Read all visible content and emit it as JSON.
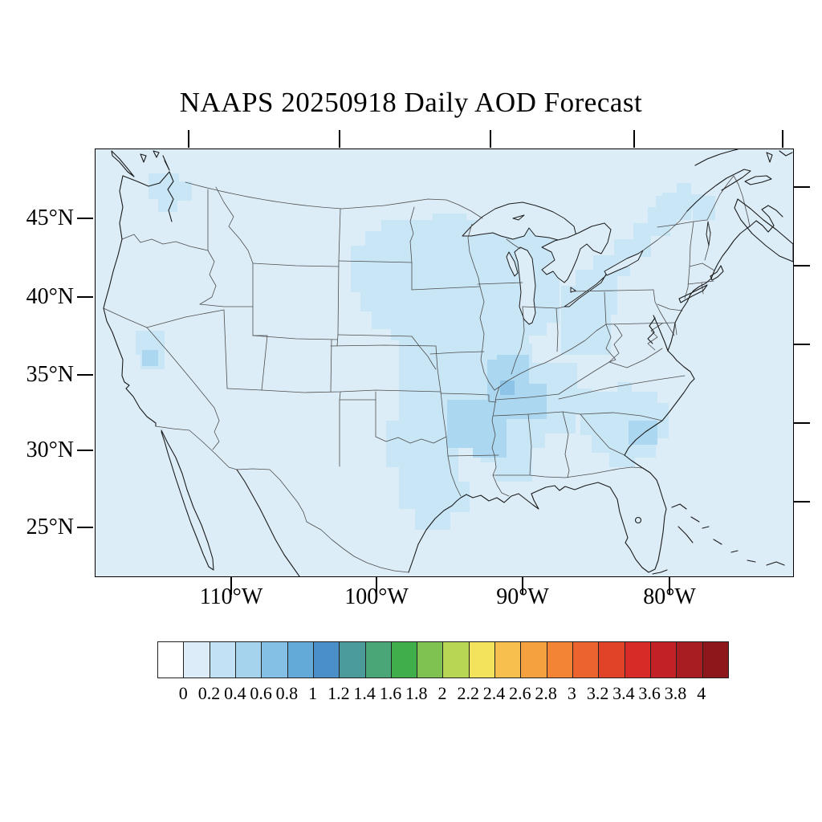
{
  "title": "NAAPS 20250918 Daily AOD Forecast",
  "map": {
    "lat_labels": [
      "45°N",
      "40°N",
      "35°N",
      "30°N",
      "25°N"
    ],
    "lon_labels": [
      "110°W",
      "100°W",
      "90°W",
      "80°W"
    ],
    "base_color": "#dcedf8",
    "aod_shade_colors": {
      "0-0.2": "#dcedf8",
      "0.2-0.4": "#c9e6f6",
      "0.4-0.6": "#abd7f0",
      "0.6-0.8": "#8cc3e6"
    },
    "coast_color": "#1b1b1b",
    "state_border_color": "#4d4d4d"
  },
  "colorbar": {
    "labels": [
      "0",
      "0.2",
      "0.4",
      "0.6",
      "0.8",
      "1",
      "1.2",
      "1.4",
      "1.6",
      "1.8",
      "2",
      "2.2",
      "2.4",
      "2.6",
      "2.8",
      "3",
      "3.2",
      "3.4",
      "3.6",
      "3.8",
      "4"
    ],
    "colors": [
      "#ffffff",
      "#dcecf9",
      "#c3e1f4",
      "#a5d3ee",
      "#84c0e5",
      "#64aad9",
      "#4a8fc7",
      "#4b9b9b",
      "#4aa577",
      "#40ae4b",
      "#7fc251",
      "#b8d553",
      "#f3e35c",
      "#f7c04e",
      "#f5a140",
      "#f28433",
      "#ec632d",
      "#e14328",
      "#d62b27",
      "#c22126",
      "#a81d22",
      "#8c181c"
    ]
  },
  "chart_data": {
    "type": "heatmap",
    "title": "NAAPS 20250918 Daily AOD Forecast",
    "variable": "Aerosol Optical Depth (AOD)",
    "scale_ticks": [
      0,
      0.2,
      0.4,
      0.6,
      0.8,
      1,
      1.2,
      1.4,
      1.6,
      1.8,
      2,
      2.2,
      2.4,
      2.6,
      2.8,
      3,
      3.2,
      3.4,
      3.6,
      3.8,
      4
    ],
    "scale_range": [
      0,
      4
    ],
    "lat_ticks_deg_n": [
      45,
      40,
      35,
      30,
      25
    ],
    "lon_ticks_deg_w": [
      110,
      100,
      90,
      80
    ],
    "regions": [
      {
        "region": "Pacific Northwest (Puget Sound, WA)",
        "aod": "0.2-0.4"
      },
      {
        "region": "Sierra Nevada / Tahoe (CA-NV border)",
        "aod": "0.2-0.4"
      },
      {
        "region": "Northern Plains (Dakotas, E Montana)",
        "aod": "0.2-0.4"
      },
      {
        "region": "Upper Midwest (MN, WI, MI)",
        "aod": "0.2-0.4"
      },
      {
        "region": "Ohio Valley and Lower Great Lakes (OH, Lake Erie/Ontario, upstate NY)",
        "aod": "0.2-0.4"
      },
      {
        "region": "Central Plains swath (NE-KS-OK-E TX)",
        "aod": "0.2-0.4"
      },
      {
        "region": "Mid-South (AR, TN, KY, N MS, N AL)",
        "aod": "0.4-0.6"
      },
      {
        "region": "Mississippi-Ohio confluence (MO/IL/KY)",
        "aod": "0.6-0.8"
      },
      {
        "region": "Southeast (GA, SC coast)",
        "aod": "0.2-0.4"
      },
      {
        "region": "East Texas Gulf Coast",
        "aod": "0.2-0.4"
      },
      {
        "region": "Northern New England / St. Lawrence valley",
        "aod": "0.2-0.4"
      },
      {
        "region": "Remainder of CONUS domain",
        "aod": "0-0.2"
      }
    ]
  }
}
